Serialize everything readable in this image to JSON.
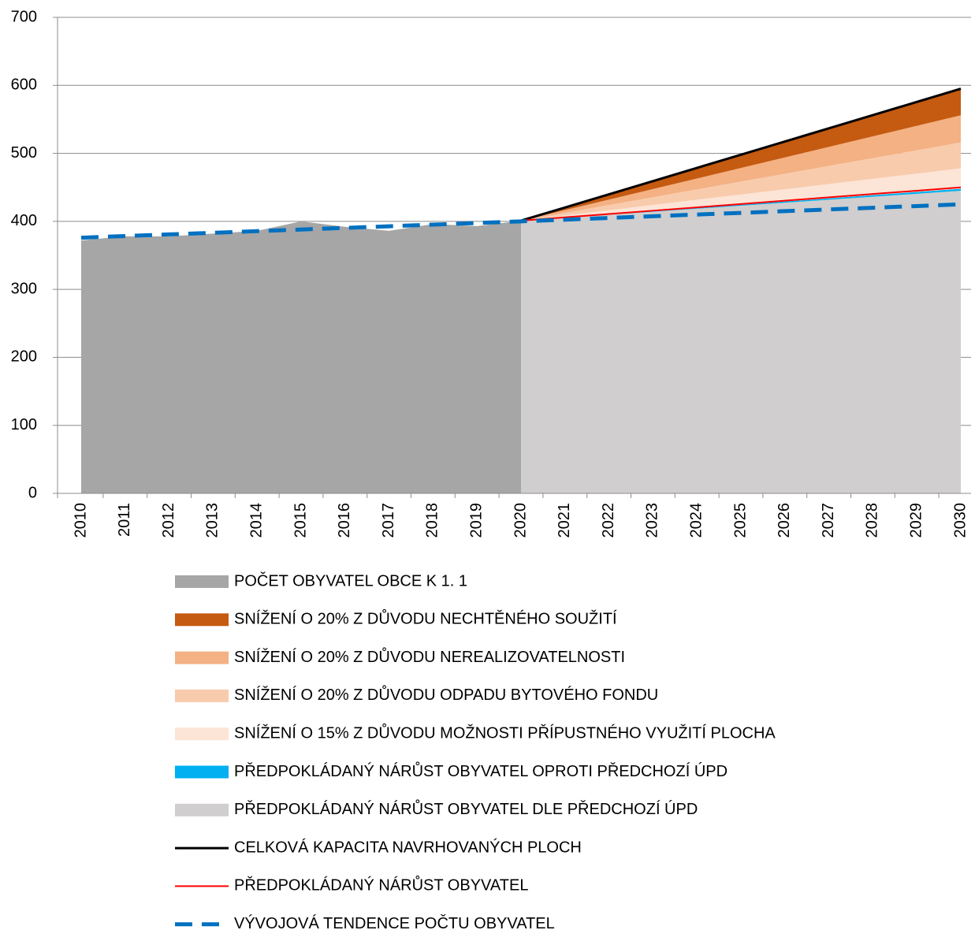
{
  "chart_data": {
    "type": "area",
    "categories": [
      "2010",
      "2011",
      "2012",
      "2013",
      "2014",
      "2015",
      "2016",
      "2017",
      "2018",
      "2019",
      "2020",
      "2021",
      "2022",
      "2023",
      "2024",
      "2025",
      "2026",
      "2027",
      "2028",
      "2029",
      "2030"
    ],
    "ylim": [
      0,
      700
    ],
    "yticks": [
      0,
      100,
      200,
      300,
      400,
      500,
      600,
      700
    ],
    "grid": true,
    "legend": "bottom",
    "series": [
      {
        "name": "POČET OBYVATEL OBCE K 1. 1",
        "type": "area",
        "color": "#a6a6a6",
        "values": [
          372,
          378,
          378,
          382,
          386,
          400,
          392,
          386,
          396,
          393,
          401,
          null,
          null,
          null,
          null,
          null,
          null,
          null,
          null,
          null,
          null
        ]
      },
      {
        "name": "SNÍŽENÍ O 20% Z DŮVODU NECHTĚNÉHO SOUŽITÍ",
        "type": "area",
        "stacked": true,
        "color": "#c55a11",
        "values": [
          null,
          null,
          null,
          null,
          null,
          null,
          null,
          null,
          null,
          null,
          0,
          3.9,
          7.8,
          11.7,
          15.6,
          19.5,
          23.4,
          27.3,
          31.2,
          35.1,
          39
        ]
      },
      {
        "name": "SNÍŽENÍ O 20% Z DŮVODU NEREALIZOVATELNOSTI",
        "type": "area",
        "stacked": true,
        "color": "#f4b183",
        "values": [
          null,
          null,
          null,
          null,
          null,
          null,
          null,
          null,
          null,
          null,
          0,
          4,
          8,
          12,
          16,
          20,
          24,
          28,
          32,
          36,
          40
        ]
      },
      {
        "name": "SNÍŽENÍ O 20% Z DŮVODU ODPADU BYTOVÉHO FONDU",
        "type": "area",
        "stacked": true,
        "color": "#f8cbad",
        "values": [
          null,
          null,
          null,
          null,
          null,
          null,
          null,
          null,
          null,
          null,
          0,
          3.8,
          7.6,
          11.4,
          15.2,
          19,
          22.8,
          26.6,
          30.4,
          34.2,
          38
        ]
      },
      {
        "name": "SNÍŽENÍ O 15% Z DŮVODU MOŽNOSTI PŘÍPUSTNÉHO VYUŽITÍ PLOCHA",
        "type": "area",
        "stacked": true,
        "color": "#fce4d6",
        "values": [
          null,
          null,
          null,
          null,
          null,
          null,
          null,
          null,
          null,
          null,
          0,
          3,
          6,
          9,
          12,
          15,
          18,
          21,
          24,
          27,
          30
        ]
      },
      {
        "name": "PŘEDPOKLÁDANÝ NÁRŮST OBYVATEL OPROTI PŘEDCHOZÍ ÚPD",
        "type": "area",
        "stacked": true,
        "color": "#00b0f0",
        "values": [
          null,
          null,
          null,
          null,
          null,
          null,
          null,
          null,
          null,
          null,
          0,
          0.3,
          0.6,
          0.9,
          1.2,
          1.5,
          1.8,
          2.1,
          2.4,
          2.7,
          3
        ]
      },
      {
        "name": "PŘEDPOKLÁDANÝ NÁRŮST OBYVATEL DLE PŘEDCHOZÍ ÚPD",
        "type": "area",
        "stacked": true,
        "color": "#d0cece",
        "values": [
          null,
          null,
          null,
          null,
          null,
          null,
          null,
          null,
          null,
          null,
          401,
          405.4,
          409.8,
          414.2,
          418.6,
          423,
          427.4,
          431.8,
          436.2,
          440.6,
          445
        ]
      },
      {
        "name": "CELKOVÁ KAPACITA NAVRHOVANÝCH PLOCH",
        "type": "line",
        "color": "#000000",
        "width": 3,
        "values": [
          null,
          null,
          null,
          null,
          null,
          null,
          null,
          null,
          null,
          null,
          401,
          420.4,
          439.8,
          459.2,
          478.6,
          498,
          517.4,
          536.8,
          556.2,
          575.6,
          595
        ]
      },
      {
        "name": "PŘEDPOKLÁDANÝ NÁRŮST OBYVATEL",
        "type": "line",
        "color": "#ff0000",
        "width": 2,
        "values": [
          null,
          null,
          null,
          null,
          null,
          null,
          null,
          null,
          null,
          null,
          401,
          405.9,
          410.8,
          415.7,
          420.6,
          425.5,
          430.4,
          435.3,
          440.2,
          445.1,
          450
        ]
      },
      {
        "name": "VÝVOJOVÁ TENDENCE POČTU OBYVATEL",
        "type": "line",
        "color": "#0070c0",
        "width": 5,
        "dashed": true,
        "values": [
          376,
          378.4,
          380.8,
          383.2,
          385.6,
          388,
          390.4,
          392.8,
          395.2,
          397.6,
          400,
          402.5,
          405,
          407.5,
          410,
          412.5,
          415,
          417.5,
          420,
          422.5,
          425
        ]
      }
    ]
  }
}
